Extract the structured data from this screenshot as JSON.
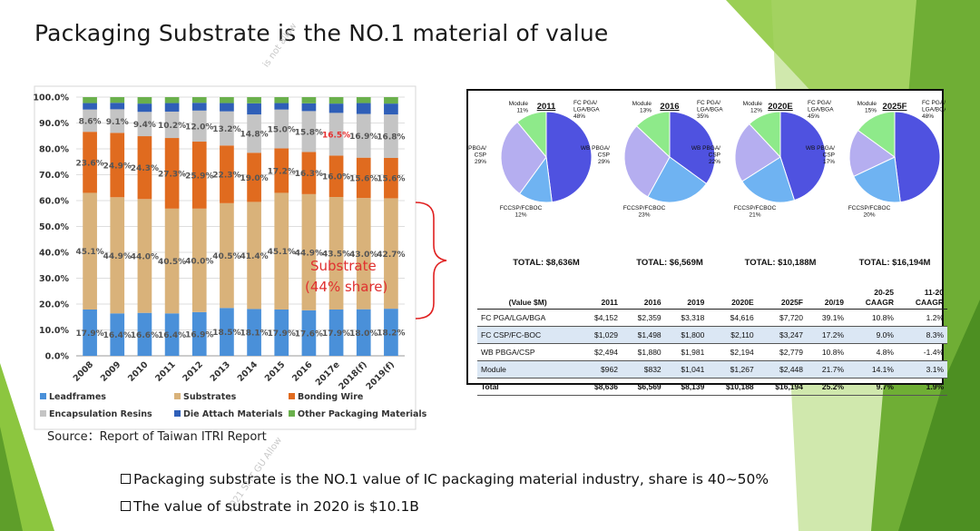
{
  "slide": {
    "title": "Packaging Substrate is the NO.1 material of value",
    "source": "Source：Report of Taiwan ITRI Report",
    "watermark1": "is not allow",
    "watermark2": "2021 SMT GU Allow",
    "bullets": [
      "Packaging substrate is the NO.1 value of IC packaging material industry, share is 40~50%",
      "The value of substrate in 2020 is $10.1B"
    ],
    "colors": {
      "green_decor": "#8cc63f",
      "dark_green_decor": "#5e9e2a",
      "panel_border": "#111111",
      "bracket": "#e02020"
    }
  },
  "chart_data": [
    {
      "type": "bar",
      "subtype": "stacked-100",
      "categories": [
        "2008",
        "2009",
        "2010",
        "2011",
        "2012",
        "2013",
        "2014",
        "2015",
        "2016",
        "2017e",
        "2018(f)",
        "2019(f)"
      ],
      "ylim": [
        0,
        100
      ],
      "yticks": [
        "0.0%",
        "10.0%",
        "20.0%",
        "30.0%",
        "40.0%",
        "50.0%",
        "60.0%",
        "70.0%",
        "80.0%",
        "90.0%",
        "100.0%"
      ],
      "series": [
        {
          "name": "Leadframes",
          "color": "#4a90d9",
          "values": [
            17.9,
            16.4,
            16.6,
            16.4,
            16.9,
            18.5,
            18.1,
            17.9,
            17.6,
            17.9,
            18.0,
            18.2
          ],
          "labels": [
            "17.9%",
            "16.4%",
            "16.6%",
            "16.4%",
            "16.9%",
            "18.5%",
            "18.1%",
            "17.9%",
            "17.6%",
            "17.9%",
            "18.0%",
            "18.2%"
          ]
        },
        {
          "name": "Substrates",
          "color": "#d9b27a",
          "values": [
            45.1,
            44.9,
            44.0,
            40.5,
            40.0,
            40.5,
            41.4,
            45.1,
            44.9,
            43.5,
            43.0,
            42.7
          ],
          "labels": [
            "45.1%",
            "44.9%",
            "44.0%",
            "40.5%",
            "40.0%",
            "40.5%",
            "41.4%",
            "45.1%",
            "44.9%",
            "43.5%",
            "43.0%",
            "42.7%"
          ]
        },
        {
          "name": "Bonding Wire",
          "color": "#e06b1f",
          "values": [
            23.6,
            24.9,
            24.3,
            27.3,
            25.9,
            22.3,
            19.0,
            17.2,
            16.3,
            16.0,
            15.6,
            15.6
          ],
          "labels": [
            "23.6%",
            "24.9%",
            "24.3%",
            "27.3%",
            "25.9%",
            "22.3%",
            "19.0%",
            "17.2%",
            "16.3%",
            "16.0%",
            "15.6%",
            "15.6%"
          ]
        },
        {
          "name": "Encapsulation Resins",
          "color": "#c4c4c4",
          "values": [
            8.6,
            9.1,
            9.4,
            10.2,
            12.0,
            13.2,
            14.8,
            15.0,
            15.8,
            16.5,
            16.9,
            16.8
          ],
          "labels": [
            "8.6%",
            "9.1%",
            "9.4%",
            "10.2%",
            "12.0%",
            "13.2%",
            "14.8%",
            "15.0%",
            "15.8%",
            "16.5%",
            "16.9%",
            "16.8%"
          ]
        },
        {
          "name": "Die Attach Materials",
          "color": "#2f5fb8",
          "values": [
            2.5,
            2.5,
            3.2,
            3.3,
            3.0,
            3.2,
            4.3,
            2.5,
            3.0,
            3.6,
            4.2,
            4.2
          ]
        },
        {
          "name": "Other Packaging Materials",
          "color": "#6ab04c",
          "values": [
            2.3,
            2.2,
            2.5,
            2.3,
            2.2,
            2.3,
            2.4,
            2.3,
            2.4,
            2.5,
            2.3,
            2.5
          ]
        }
      ],
      "annotation": {
        "line1": "Substrate",
        "line2": "(44% share)"
      }
    },
    {
      "type": "pie",
      "title": "2011",
      "total": "TOTAL: $8,636M",
      "slices": [
        {
          "label": "FC PGA/ LGA/BGA",
          "pct": "48%",
          "value": 48,
          "color": "#4f52e0"
        },
        {
          "label": "FCCSP/FCBOC",
          "pct": "12%",
          "value": 12,
          "color": "#6fb3f2"
        },
        {
          "label": "WB PBGA/ CSP",
          "pct": "29%",
          "value": 29,
          "color": "#b5aef0"
        },
        {
          "label": "Module",
          "pct": "11%",
          "value": 11,
          "color": "#8eea8a"
        }
      ]
    },
    {
      "type": "pie",
      "title": "2016",
      "total": "TOTAL: $6,569M",
      "slices": [
        {
          "label": "FC PGA/ LGA/BGA",
          "pct": "35%",
          "value": 35,
          "color": "#4f52e0"
        },
        {
          "label": "FCCSP/FCBOC",
          "pct": "23%",
          "value": 23,
          "color": "#6fb3f2"
        },
        {
          "label": "WB PBGA/ CSP",
          "pct": "29%",
          "value": 29,
          "color": "#b5aef0"
        },
        {
          "label": "Module",
          "pct": "13%",
          "value": 13,
          "color": "#8eea8a"
        }
      ]
    },
    {
      "type": "pie",
      "title": "2020E",
      "total": "TOTAL: $10,188M",
      "slices": [
        {
          "label": "FC PGA/ LGA/BGA",
          "pct": "45%",
          "value": 45,
          "color": "#4f52e0"
        },
        {
          "label": "FCCSP/FCBOC",
          "pct": "21%",
          "value": 21,
          "color": "#6fb3f2"
        },
        {
          "label": "WB PBGA/ CSP",
          "pct": "22%",
          "value": 22,
          "color": "#b5aef0"
        },
        {
          "label": "Module",
          "pct": "12%",
          "value": 12,
          "color": "#8eea8a"
        }
      ]
    },
    {
      "type": "pie",
      "title": "2025F",
      "total": "TOTAL: $16,194M",
      "slices": [
        {
          "label": "FC PGA/ LGA/BGA",
          "pct": "48%",
          "value": 48,
          "color": "#4f52e0"
        },
        {
          "label": "FCCSP/FCBOC",
          "pct": "20%",
          "value": 20,
          "color": "#6fb3f2"
        },
        {
          "label": "WB PBGA/ CSP",
          "pct": "17%",
          "value": 17,
          "color": "#b5aef0"
        },
        {
          "label": "Module",
          "pct": "15%",
          "value": 15,
          "color": "#8eea8a"
        }
      ]
    },
    {
      "type": "table",
      "headers": [
        "(Value $M)",
        "2011",
        "2016",
        "2019",
        "2020E",
        "2025F",
        "20/19",
        "20-25 CAAGR",
        "11-20 CAAGR"
      ],
      "rows": [
        [
          "FC PGA/LGA/BGA",
          "$4,152",
          "$2,359",
          "$3,318",
          "$4,616",
          "$7,720",
          "39.1%",
          "10.8%",
          "1.2%"
        ],
        [
          "FC CSP/FC-BOC",
          "$1,029",
          "$1,498",
          "$1,800",
          "$2,110",
          "$3,247",
          "17.2%",
          "9.0%",
          "8.3%"
        ],
        [
          "WB PBGA/CSP",
          "$2,494",
          "$1,880",
          "$1,981",
          "$2,194",
          "$2,779",
          "10.8%",
          "4.8%",
          "-1.4%"
        ],
        [
          "Module",
          "$962",
          "$832",
          "$1,041",
          "$1,267",
          "$2,448",
          "21.7%",
          "14.1%",
          "3.1%"
        ],
        [
          "Total",
          "$8,636",
          "$6,569",
          "$8,139",
          "$10,188",
          "$16,194",
          "25.2%",
          "9.7%",
          "1.9%"
        ]
      ]
    }
  ]
}
